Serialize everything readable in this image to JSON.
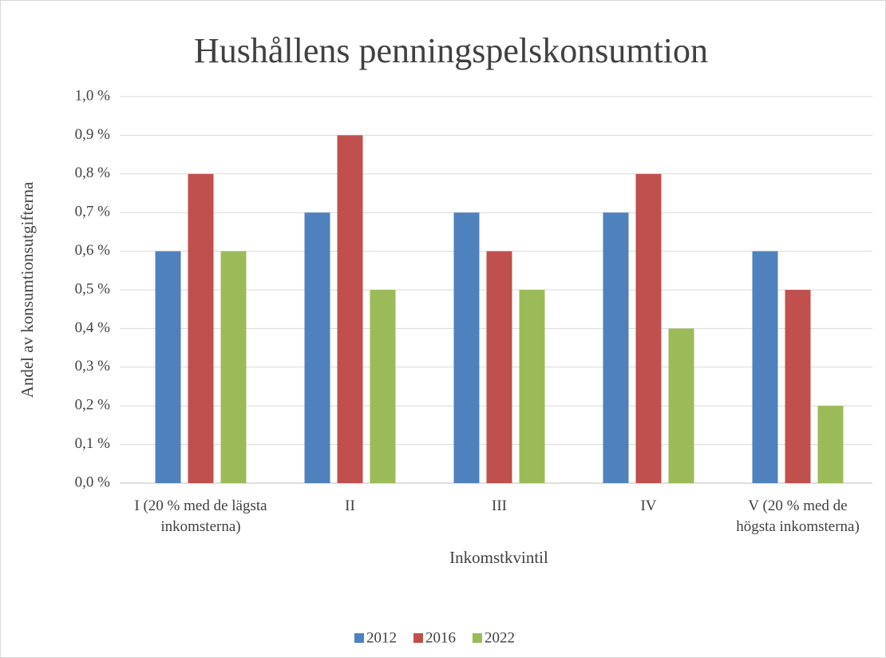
{
  "chart_data": {
    "type": "bar",
    "title": "Hushållens penningspelskonsumtion",
    "x_label": "Inkomstkvintil",
    "y_label": "Andel av konsumtionsutgifterna",
    "categories": [
      "I (20 % med de lägsta inkomsterna)",
      "II",
      "III",
      "IV",
      "V (20 % med de högsta inkomsterna)"
    ],
    "series": [
      {
        "name": "2012",
        "color": "#4f81bd",
        "values": [
          0.6,
          0.7,
          0.7,
          0.7,
          0.6
        ]
      },
      {
        "name": "2016",
        "color": "#c0504d",
        "values": [
          0.8,
          0.9,
          0.6,
          0.8,
          0.5
        ]
      },
      {
        "name": "2022",
        "color": "#9bbb59",
        "values": [
          0.6,
          0.5,
          0.5,
          0.4,
          0.2
        ]
      }
    ],
    "ylim": [
      0,
      1.0
    ],
    "yticks": [
      {
        "value": 0,
        "label": "0,0 %"
      },
      {
        "value": 0.1,
        "label": "0,1 %"
      },
      {
        "value": 0.2,
        "label": "0,2 %"
      },
      {
        "value": 0.3,
        "label": "0,3 %"
      },
      {
        "value": 0.4,
        "label": "0,4 %"
      },
      {
        "value": 0.5,
        "label": "0,5 %"
      },
      {
        "value": 0.6,
        "label": "0,6 %"
      },
      {
        "value": 0.7,
        "label": "0,7 %"
      },
      {
        "value": 0.8,
        "label": "0,8 %"
      },
      {
        "value": 0.9,
        "label": "0,9 %"
      },
      {
        "value": 1.0,
        "label": "1,0 %"
      }
    ],
    "grid": true,
    "legend": "bottom"
  }
}
